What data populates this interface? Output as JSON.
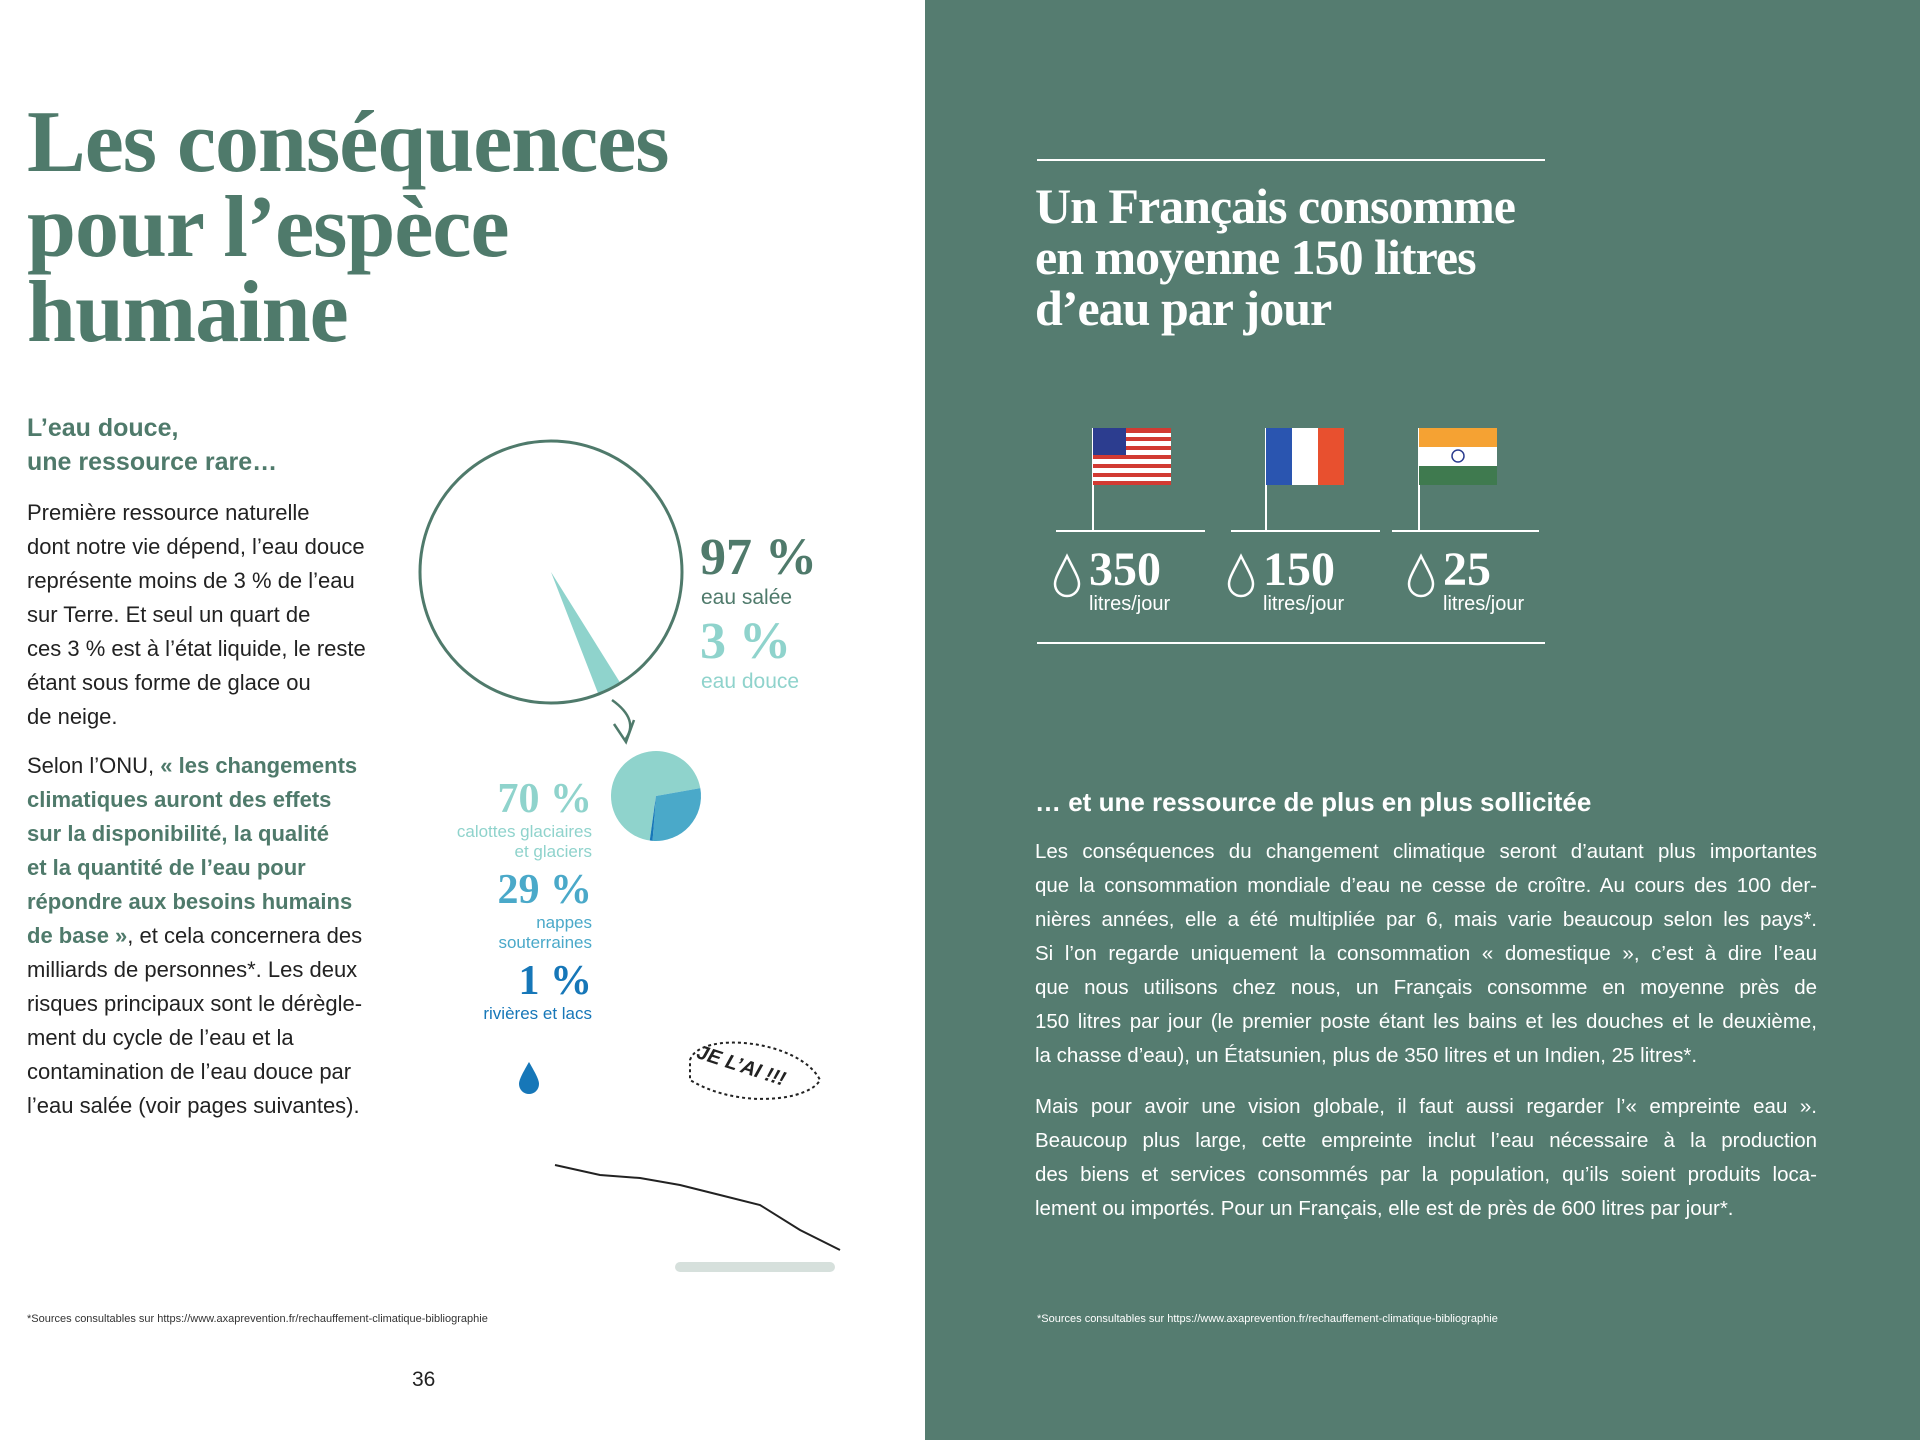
{
  "left": {
    "title": [
      "Les conséquences",
      "pour l’espèce",
      "humaine"
    ],
    "subtitle": [
      "L’eau douce,",
      "une ressource rare…"
    ],
    "para1": [
      "Première ressource naturelle",
      "dont notre vie dépend, l’eau douce",
      "représente moins de 3 % de l’eau",
      "sur Terre. Et seul un quart de",
      "ces 3 % est à l’état liquide, le reste",
      "étant sous forme de glace ou",
      "de neige."
    ],
    "para2": [
      [
        {
          "text": "Selon l’ONU, ",
          "highlight": false
        },
        {
          "text": "« les changements",
          "highlight": true
        }
      ],
      [
        {
          "text": "climatiques auront des effets",
          "highlight": true
        }
      ],
      [
        {
          "text": "sur la disponibilité, la qualité",
          "highlight": true
        }
      ],
      [
        {
          "text": "et la quantité de l’eau pour",
          "highlight": true
        }
      ],
      [
        {
          "text": "répondre aux besoins humains",
          "highlight": true
        }
      ],
      [
        {
          "text": "de base »",
          "highlight": true
        },
        {
          "text": ", et cela concernera des",
          "highlight": false
        }
      ],
      [
        {
          "text": "milliards de personnes*. Les deux",
          "highlight": false
        }
      ],
      [
        {
          "text": "risques principaux sont le dérègle-",
          "highlight": false
        }
      ],
      [
        {
          "text": "ment du cycle de l’eau et la",
          "highlight": false
        }
      ],
      [
        {
          "text": "contamination de l’eau douce par",
          "highlight": false
        }
      ],
      [
        {
          "text": "l’eau salée (voir pages suivantes).",
          "highlight": false
        }
      ]
    ],
    "water_chart": {
      "values": [
        97,
        3
      ],
      "value_labels": [
        "97 %",
        "3 %"
      ],
      "labels": [
        "eau salée",
        "eau douce"
      ],
      "colors": [
        "#ffffff",
        "#8fd3cc"
      ]
    },
    "fresh_chart": {
      "values": [
        70,
        29,
        1
      ],
      "value_labels": [
        "70 %",
        "29 %",
        "1 %"
      ],
      "labels": [
        [
          "calottes glaciaires",
          "et glaciers"
        ],
        [
          "nappes",
          "souterraines"
        ],
        [
          "rivières et lacs"
        ]
      ],
      "colors": [
        "#8fd3cc",
        "#4aa9c9",
        "#1677b8"
      ]
    },
    "cartoon_text": "JE L’AI !!!",
    "footnote": "*Sources consultables sur https://www.axaprevention.fr/rechauffement-climatique-bibliographie",
    "page_number": "36"
  },
  "right": {
    "title": [
      "Un Français consomme",
      "en moyenne 150 litres",
      "d’eau par jour"
    ],
    "countries": [
      {
        "value": "350",
        "unit": "litres/jour"
      },
      {
        "value": "150",
        "unit": "litres/jour"
      },
      {
        "value": "25",
        "unit": "litres/jour"
      }
    ],
    "subtitle": "… et une ressource de plus en plus sollicitée",
    "para1": [
      "Les conséquences du changement climatique seront d’autant plus importantes",
      "que la consommation mondiale d’eau ne cesse de croître. Au cours des 100 der-",
      "nières années, elle a été multipliée par 6, mais varie beaucoup selon les pays*.",
      "Si l’on regarde uniquement la consommation « domestique », c’est à dire l’eau",
      "que nous utilisons chez nous, un Français consomme en moyenne près de",
      "150 litres par jour (le premier poste étant les bains et les douches et le deuxième,",
      "la chasse d’eau), un Étatsunien, plus de 350 litres et un Indien, 25 litres*."
    ],
    "para2": [
      "Mais pour avoir une vision globale, il faut aussi regarder l’« empreinte eau ».",
      "Beaucoup plus large, cette empreinte inclut l’eau nécessaire à la production",
      "des biens et services consommés par la population, qu’ils soient produits loca-",
      "lement ou importés. Pour un Français, elle est de près de 600 litres par jour*."
    ],
    "footnote": "*Sources consultables sur https://www.axaprevention.fr/rechauffement-climatique-bibliographie"
  }
}
